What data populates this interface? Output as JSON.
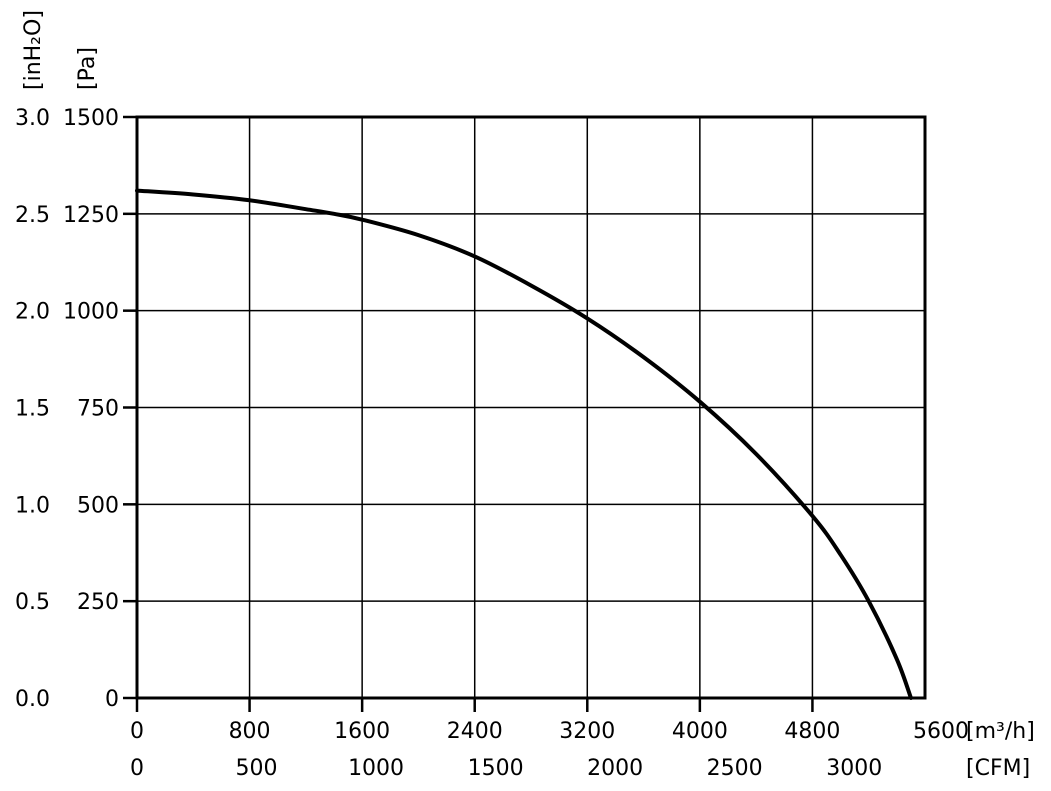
{
  "chart_data": {
    "type": "line",
    "title": "",
    "y_axes": {
      "pressure_pa": {
        "unit_label": "[Pa]",
        "ticks": [
          "0",
          "250",
          "500",
          "750",
          "1000",
          "1250",
          "1500"
        ],
        "ylim": [
          0,
          1500
        ]
      },
      "pressure_inh2o": {
        "unit_label": "[inH₂O]",
        "ticks": [
          "0.0",
          "0.5",
          "1.0",
          "1.5",
          "2.0",
          "2.5",
          "3.0"
        ],
        "ylim": [
          0,
          3.0
        ]
      }
    },
    "x_axes": {
      "flow_m3h": {
        "unit_label": "[m³/h]",
        "ticks": [
          "0",
          "800",
          "1600",
          "2400",
          "3200",
          "4000",
          "4800",
          "5600"
        ],
        "tick_values": [
          0,
          800,
          1600,
          2400,
          3200,
          4000,
          4800,
          5600
        ],
        "xlim": [
          0,
          5600
        ]
      },
      "flow_cfm": {
        "unit_label": "[CFM]",
        "ticks": [
          "0",
          "500",
          "1000",
          "1500",
          "2000",
          "2500",
          "3000"
        ],
        "tick_values": [
          0,
          500,
          1000,
          1500,
          2000,
          2500,
          3000
        ]
      }
    },
    "grid": true,
    "series": [
      {
        "x": [
          0,
          400,
          800,
          1200,
          1400,
          1600,
          2000,
          2400,
          2800,
          3200,
          3600,
          4000,
          4400,
          4800,
          5000,
          5200,
          5400,
          5500
        ],
        "y": [
          1310,
          1300,
          1285,
          1262,
          1250,
          1235,
          1195,
          1140,
          1065,
          980,
          880,
          765,
          630,
          470,
          370,
          250,
          100,
          0
        ]
      }
    ]
  }
}
